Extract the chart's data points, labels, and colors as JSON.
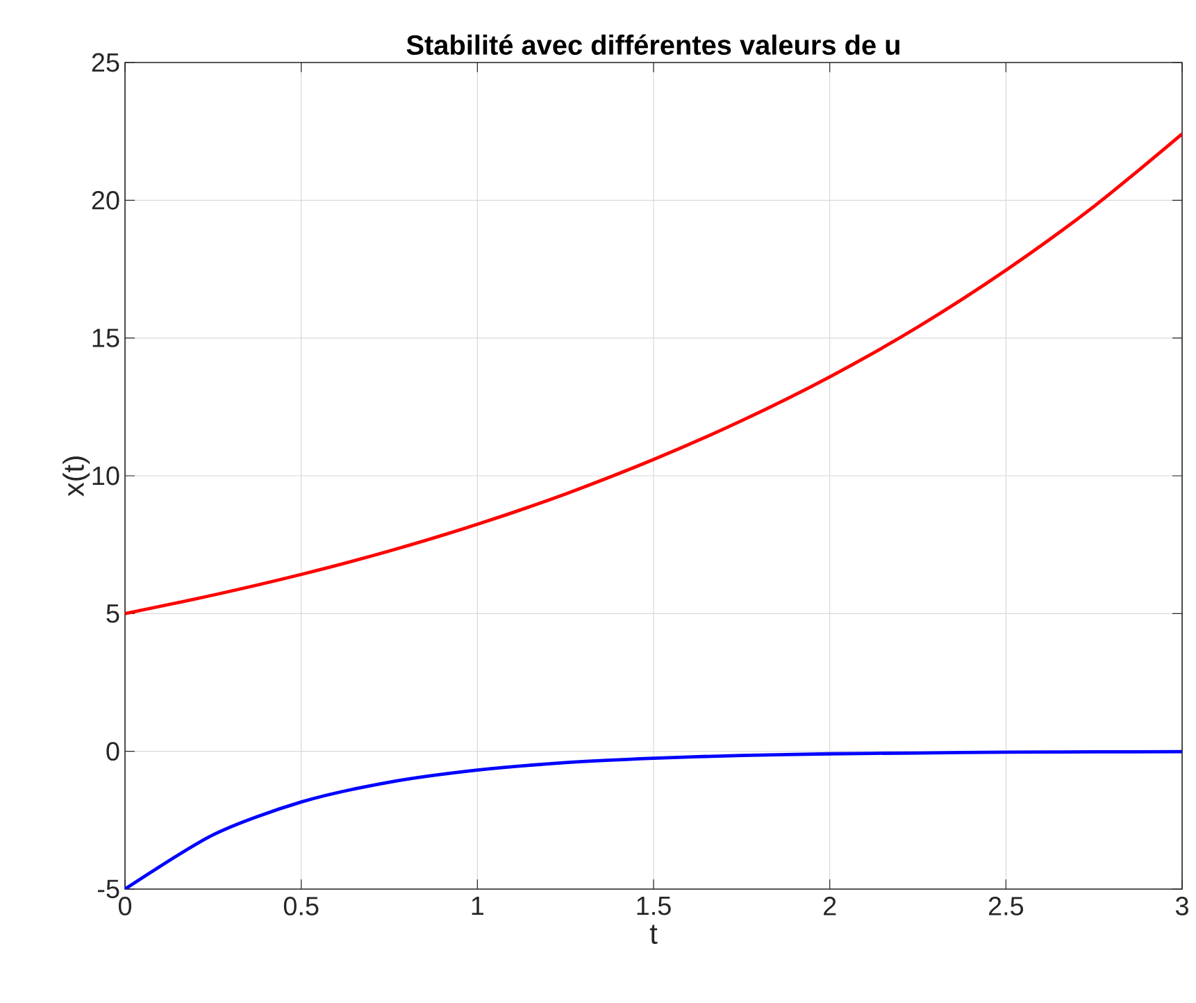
{
  "chart_data": {
    "type": "line",
    "title": "Stabilité avec différentes valeurs de u",
    "xlabel": "t",
    "ylabel": "x(t)",
    "x": [
      0,
      0.25,
      0.5,
      0.75,
      1,
      1.25,
      1.5,
      1.75,
      2,
      2.25,
      2.5,
      2.75,
      3
    ],
    "series": [
      {
        "color": "#ff0000",
        "values": [
          5,
          5.67,
          6.42,
          7.27,
          8.24,
          9.34,
          10.59,
          12.0,
          13.59,
          15.4,
          17.46,
          19.78,
          22.41
        ]
      },
      {
        "color": "#0000ff",
        "values": [
          -5,
          -3.03,
          -1.84,
          -1.12,
          -0.68,
          -0.41,
          -0.25,
          -0.15,
          -0.09,
          -0.06,
          -0.03,
          -0.02,
          -0.01
        ]
      }
    ],
    "xlim": [
      0,
      3
    ],
    "ylim": [
      -5,
      25
    ],
    "xticks": [
      0,
      0.5,
      1,
      1.5,
      2,
      2.5,
      3
    ],
    "yticks": [
      -5,
      0,
      5,
      10,
      15,
      20,
      25
    ],
    "grid": true
  }
}
